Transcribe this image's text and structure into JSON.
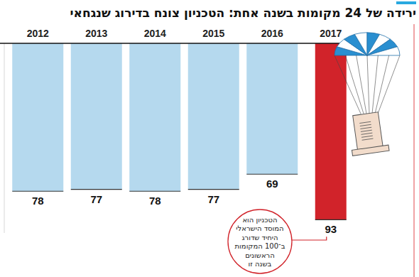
{
  "chart_data": {
    "type": "bar",
    "title": "ירידה של 24 מקומות בשנה אחת: הטכניון צונח בדירוג שנגחאי",
    "categories": [
      "2012",
      "2013",
      "2014",
      "2015",
      "2016",
      "2017"
    ],
    "values": [
      78,
      77,
      78,
      77,
      69,
      93
    ],
    "colors": [
      "#b5d9ee",
      "#b5d9ee",
      "#b5d9ee",
      "#b5d9ee",
      "#b5d9ee",
      "#d1232a"
    ],
    "ylim": [
      100,
      0
    ],
    "yticks": [],
    "tick_labels": "x",
    "data_labels": true,
    "annotation": [
      "הטכניון הוא",
      "המוסד הישראלי",
      "היחיד שדורג",
      "ב־100 המקומות",
      "הראשונים",
      "בשנה זו"
    ]
  }
}
